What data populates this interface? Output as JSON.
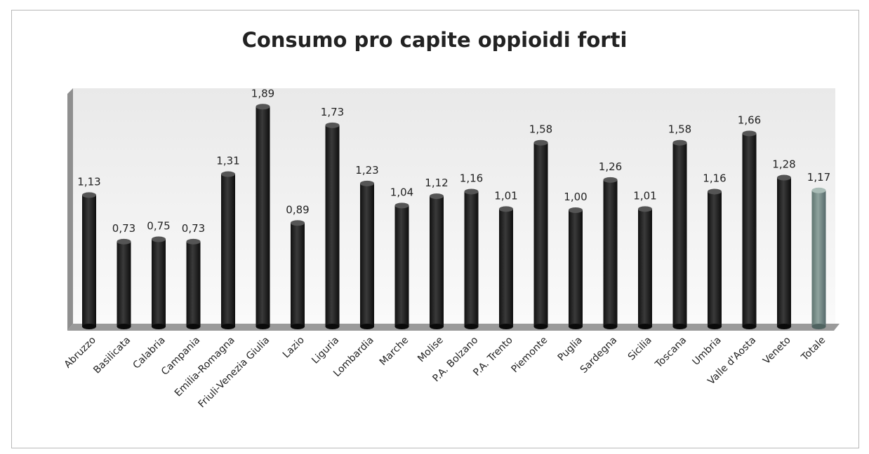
{
  "chart_data": {
    "type": "bar",
    "title": "Consumo pro capite oppioidi forti",
    "xlabel": "",
    "ylabel": "",
    "ylim": [
      0,
      2
    ],
    "grid": false,
    "legend": "none",
    "categories": [
      "Abruzzo",
      "Basilicata",
      "Calabria",
      "Campania",
      "Emilia-Romagna",
      "Friuli-Venezia Giulia",
      "Lazio",
      "Liguria",
      "Lombardia",
      "Marche",
      "Molise",
      "P.A. Bolzano",
      "P.A. Trento",
      "Piemonte",
      "Puglia",
      "Sardegna",
      "Sicilia",
      "Toscana",
      "Umbria",
      "Valle d'Aosta",
      "Veneto",
      "Totale"
    ],
    "values": [
      1.13,
      0.73,
      0.75,
      0.73,
      1.31,
      1.89,
      0.89,
      1.73,
      1.23,
      1.04,
      1.12,
      1.16,
      1.01,
      1.58,
      1.0,
      1.26,
      1.01,
      1.58,
      1.16,
      1.66,
      1.28,
      1.17
    ],
    "value_labels": [
      "1,13",
      "0,73",
      "0,75",
      "0,73",
      "1,31",
      "1,89",
      "0,89",
      "1,73",
      "1,23",
      "1,04",
      "1,12",
      "1,16",
      "1,01",
      "1,58",
      "1,00",
      "1,26",
      "1,01",
      "1,58",
      "1,16",
      "1,66",
      "1,28",
      "1,17"
    ],
    "colors": {
      "bar": "#2a2a2a",
      "total_bar": "#7a8f8a",
      "floor": "#9a9a9a",
      "wall": "#f1f1f1"
    }
  }
}
